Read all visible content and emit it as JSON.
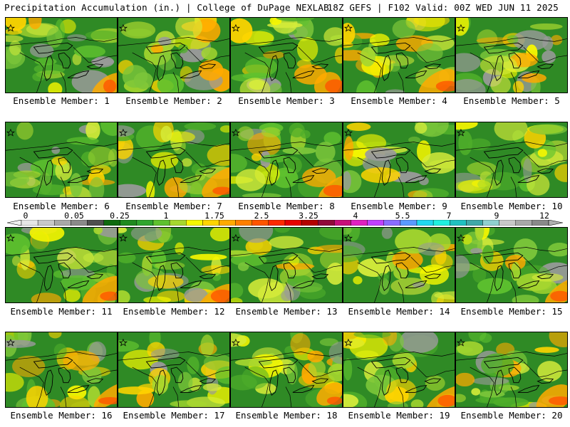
{
  "header": {
    "left": "Precipitation Accumulation (in.) | College of DuPage NEXLAB",
    "right": "18Z GEFS | F102 Valid: 00Z WED JUN 11 2025"
  },
  "panels": [
    {
      "label": "Ensemble Member: 1"
    },
    {
      "label": "Ensemble Member: 2"
    },
    {
      "label": "Ensemble Member: 3"
    },
    {
      "label": "Ensemble Member: 4"
    },
    {
      "label": "Ensemble Member: 5"
    },
    {
      "label": "Ensemble Member: 6"
    },
    {
      "label": "Ensemble Member: 7"
    },
    {
      "label": "Ensemble Member: 8"
    },
    {
      "label": "Ensemble Member: 9"
    },
    {
      "label": "Ensemble Member: 10"
    },
    {
      "label": "Ensemble Member: 11"
    },
    {
      "label": "Ensemble Member: 12"
    },
    {
      "label": "Ensemble Member: 13"
    },
    {
      "label": "Ensemble Member: 14"
    },
    {
      "label": "Ensemble Member: 15"
    },
    {
      "label": "Ensemble Member: 16"
    },
    {
      "label": "Ensemble Member: 17"
    },
    {
      "label": "Ensemble Member: 18"
    },
    {
      "label": "Ensemble Member: 19"
    },
    {
      "label": "Ensemble Member: 20"
    }
  ],
  "colorbar": {
    "labels": [
      "0",
      "0.05",
      "0.25",
      "1",
      "1.75",
      "2.5",
      "3.25",
      "4",
      "5.5",
      "7",
      "9",
      "12"
    ],
    "colors": [
      "#e6e6e6",
      "#c8c8c8",
      "#a8a8a8",
      "#8a8a8a",
      "#4f4f4f",
      "#0f6a0f",
      "#1f8a1f",
      "#2fa52f",
      "#5fc12f",
      "#a6d62f",
      "#f7f700",
      "#ffd400",
      "#ffaa00",
      "#ff7f00",
      "#ff5500",
      "#ff2a00",
      "#e60000",
      "#b40000",
      "#900a3a",
      "#c8107a",
      "#e020c0",
      "#c040ff",
      "#8a6cff",
      "#5a9aff",
      "#20d8f0",
      "#20f0e0",
      "#20c0c0",
      "#40a8a8",
      "#90d0d0",
      "#c8c8c8",
      "#a8a8a8",
      "#8a8a8a"
    ]
  }
}
